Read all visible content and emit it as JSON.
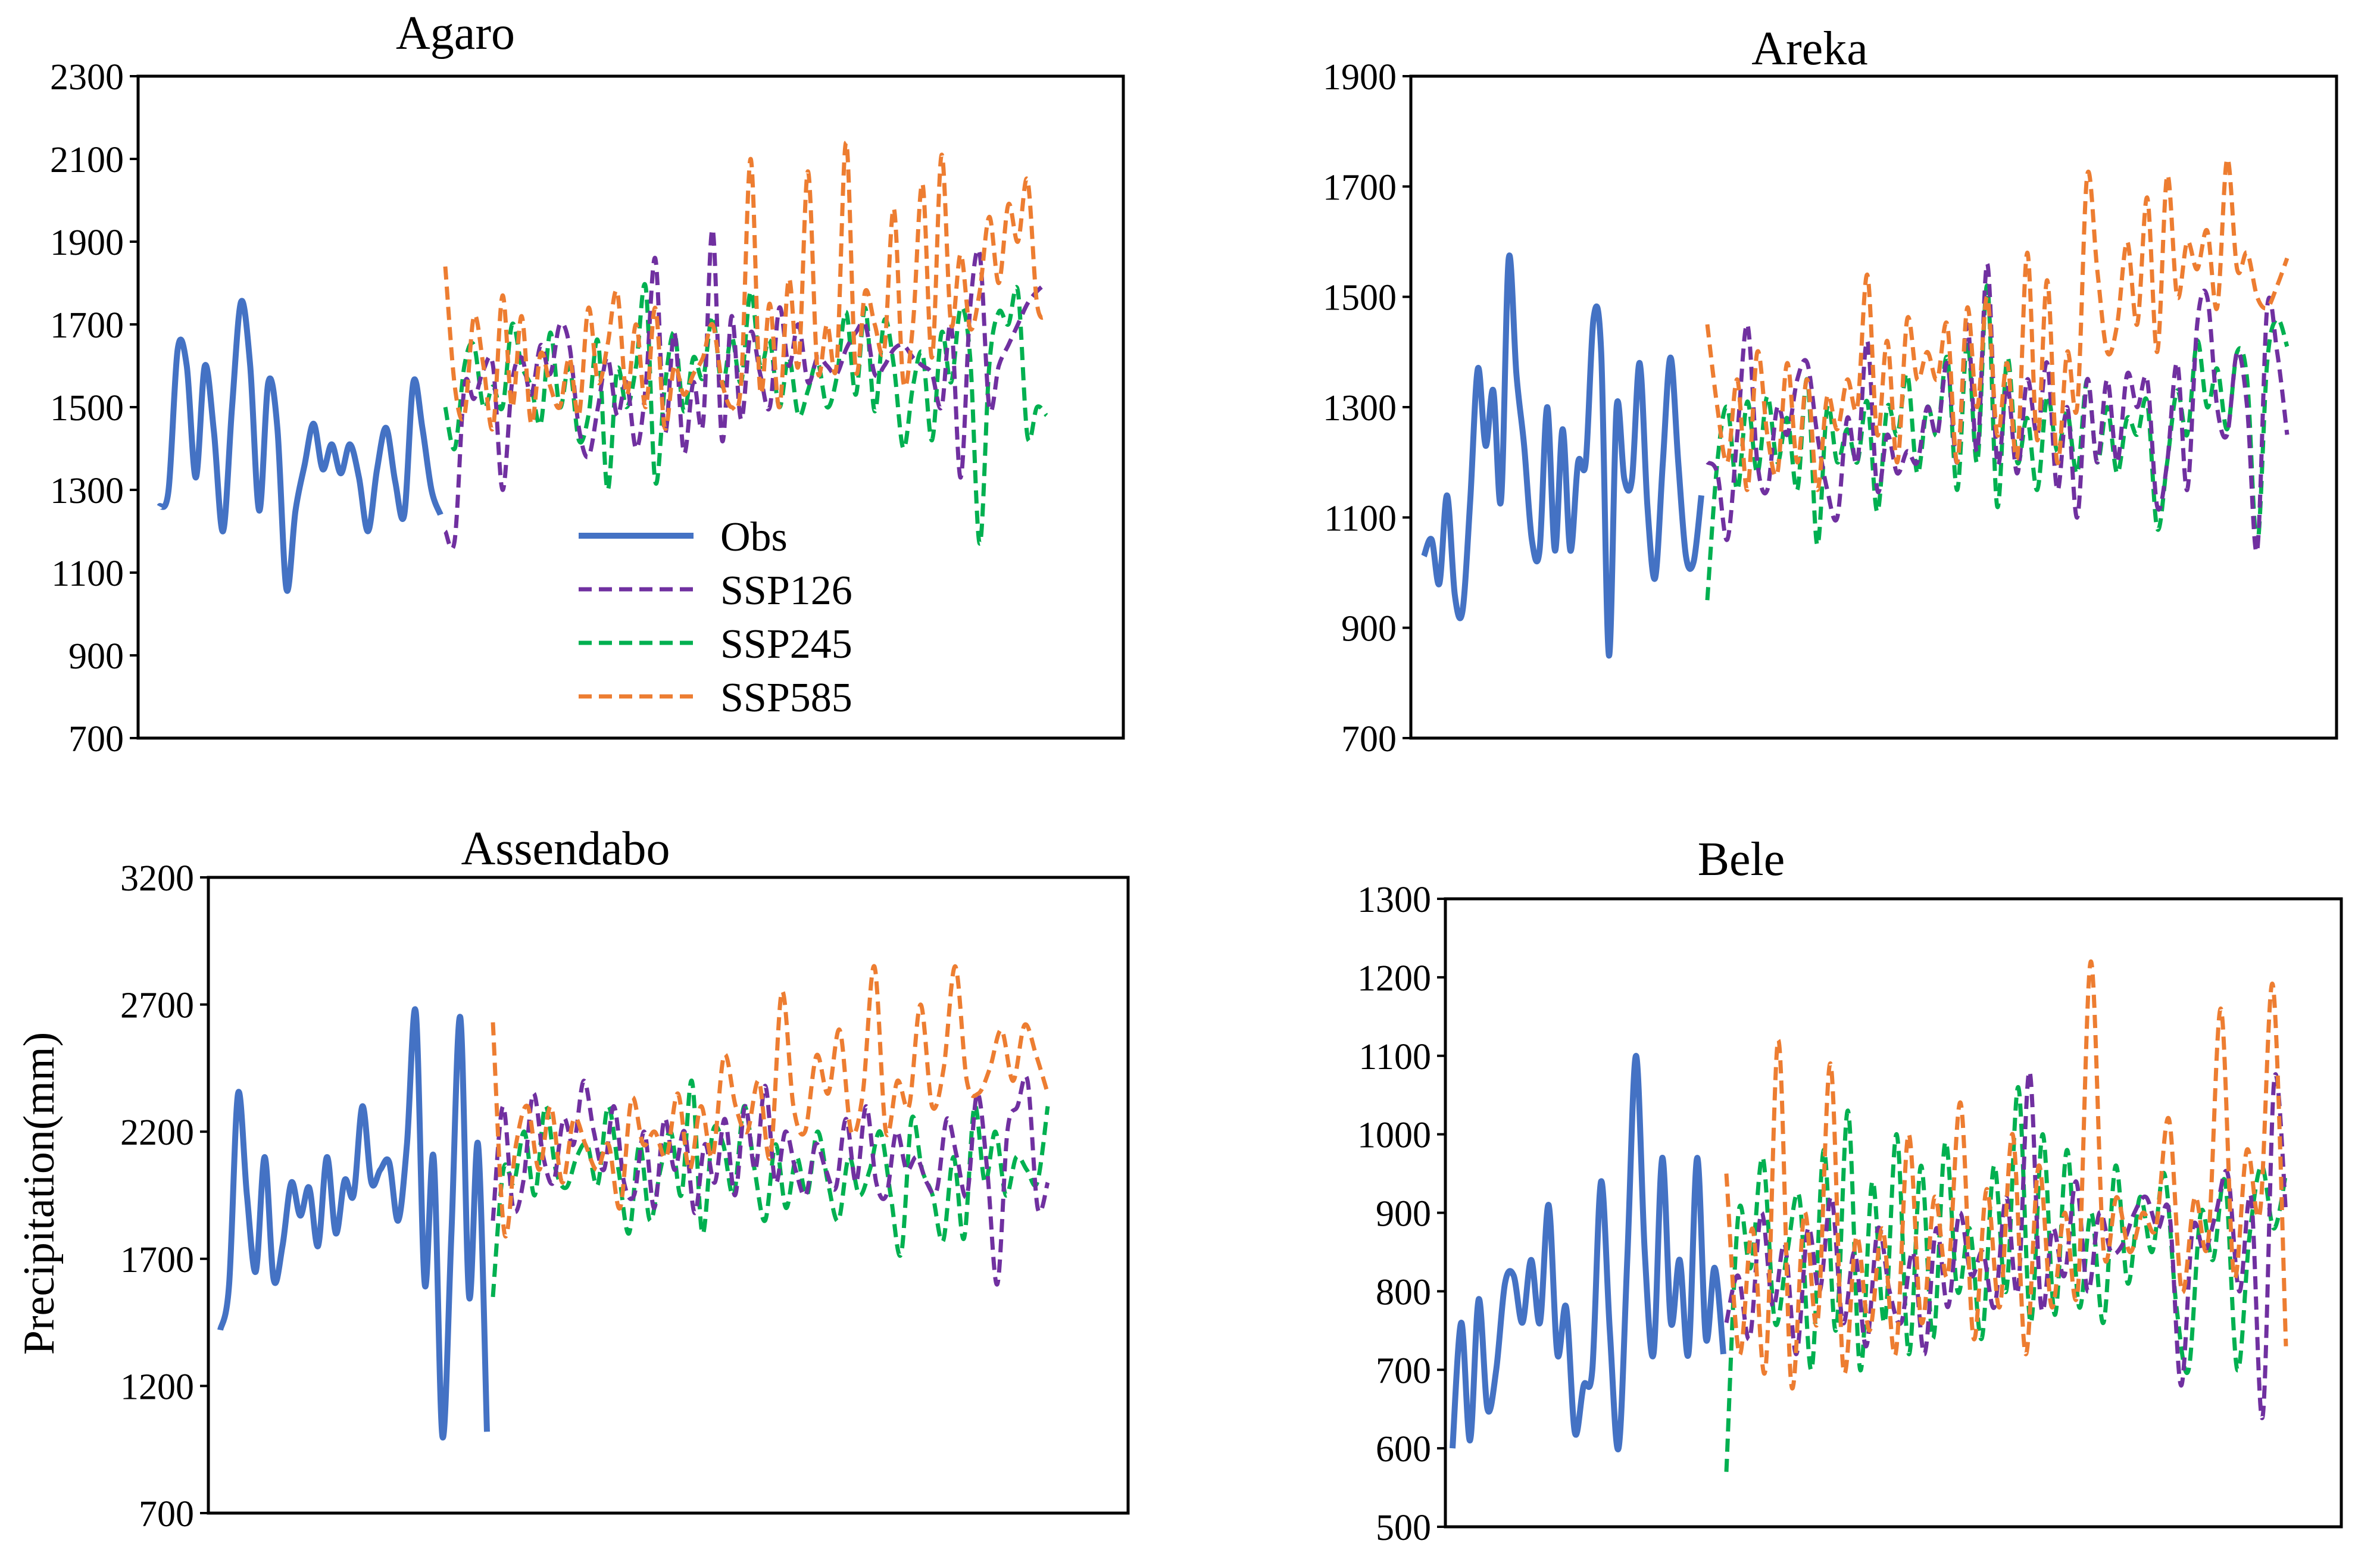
{
  "ylabel": "Precipitation(mm)",
  "colors": {
    "Obs": "#4472C4",
    "SSP126": "#7030A0",
    "SSP245": "#00B050",
    "SSP585": "#ED7D31"
  },
  "legend": {
    "items": [
      "Obs",
      "SSP126",
      "SSP245",
      "SSP585"
    ]
  },
  "chart_data": [
    {
      "type": "line",
      "title": "Agaro",
      "xlabel": "",
      "ylabel": "",
      "ylim": [
        700,
        2300
      ],
      "yticks": [
        "700",
        "900",
        "1100",
        "1300",
        "1500",
        "1700",
        "1900",
        "2100",
        "2300"
      ],
      "obs": [
        1260,
        1300,
        1640,
        1600,
        1330,
        1600,
        1440,
        1200,
        1500,
        1755,
        1600,
        1250,
        1560,
        1450,
        1060,
        1250,
        1360,
        1460,
        1350,
        1410,
        1340,
        1410,
        1330,
        1200,
        1350,
        1450,
        1320,
        1240,
        1560,
        1450,
        1300,
        1240
      ],
      "future": {
        "SSP126": [
          1200,
          1180,
          1550,
          1520,
          1590,
          1600,
          1300,
          1560,
          1620,
          1530,
          1650,
          1580,
          1700,
          1650,
          1450,
          1380,
          1500,
          1620,
          1480,
          1560,
          1400,
          1550,
          1860,
          1440,
          1680,
          1390,
          1560,
          1460,
          1930,
          1420,
          1720,
          1470,
          1680,
          1580,
          1500,
          1740,
          1600,
          1700,
          1560,
          1620,
          1600,
          1580,
          1640,
          1680,
          1700,
          1580,
          1600,
          1640,
          1650,
          1620,
          1600,
          1580,
          1500,
          1700,
          1330,
          1740,
          1870,
          1500,
          1600,
          1650,
          1700,
          1750,
          1780,
          1800
        ],
        "SSP245": [
          1500,
          1400,
          1600,
          1650,
          1500,
          1550,
          1500,
          1700,
          1600,
          1550,
          1460,
          1680,
          1500,
          1600,
          1420,
          1480,
          1660,
          1300,
          1590,
          1500,
          1600,
          1790,
          1320,
          1550,
          1680,
          1490,
          1620,
          1570,
          1720,
          1550,
          1670,
          1560,
          1780,
          1600,
          1660,
          1500,
          1620,
          1480,
          1540,
          1610,
          1500,
          1570,
          1730,
          1530,
          1740,
          1490,
          1710,
          1600,
          1400,
          1550,
          1630,
          1420,
          1680,
          1560,
          1740,
          1620,
          1170,
          1600,
          1730,
          1700,
          1780,
          1430,
          1500,
          1480
        ],
        "SSP585": [
          1840,
          1550,
          1480,
          1720,
          1600,
          1450,
          1770,
          1500,
          1720,
          1460,
          1630,
          1550,
          1500,
          1620,
          1480,
          1740,
          1560,
          1650,
          1780,
          1530,
          1700,
          1500,
          1740,
          1450,
          1600,
          1530,
          1580,
          1620,
          1700,
          1560,
          1500,
          1560,
          2100,
          1540,
          1750,
          1500,
          1810,
          1600,
          2070,
          1590,
          1700,
          1600,
          2140,
          1590,
          1780,
          1700,
          1640,
          1980,
          1560,
          1700,
          2040,
          1620,
          2110,
          1700,
          1870,
          1690,
          1780,
          1960,
          1800,
          1990,
          1900,
          2050,
          1750,
          1720
        ]
      }
    },
    {
      "type": "line",
      "title": "Areka",
      "xlabel": "",
      "ylabel": "",
      "ylim": [
        700,
        1900
      ],
      "yticks": [
        "700",
        "900",
        "1100",
        "1300",
        "1500",
        "1700",
        "1900"
      ],
      "obs": [
        1030,
        1060,
        980,
        1140,
        960,
        930,
        1130,
        1370,
        1230,
        1330,
        1130,
        1570,
        1360,
        1230,
        1060,
        1040,
        1300,
        1040,
        1260,
        1040,
        1200,
        1200,
        1460,
        1400,
        850,
        1300,
        1170,
        1170,
        1380,
        1120,
        990,
        1200,
        1390,
        1200,
        1030,
        1020,
        1140
      ],
      "future": {
        "SSP126": [
          1200,
          1180,
          1060,
          1250,
          1450,
          1200,
          1150,
          1300,
          1250,
          1350,
          1380,
          1250,
          1150,
          1100,
          1280,
          1200,
          1420,
          1150,
          1250,
          1180,
          1220,
          1200,
          1300,
          1250,
          1380,
          1200,
          1450,
          1220,
          1560,
          1200,
          1340,
          1180,
          1350,
          1250,
          1380,
          1150,
          1300,
          1100,
          1350,
          1200,
          1350,
          1200,
          1360,
          1300,
          1350,
          1120,
          1200,
          1380,
          1150,
          1450,
          1500,
          1300,
          1250,
          1400,
          1300,
          1040,
          1480,
          1400,
          1250
        ],
        "SSP245": [
          950,
          1200,
          1300,
          1150,
          1310,
          1180,
          1320,
          1200,
          1280,
          1150,
          1350,
          1050,
          1300,
          1200,
          1260,
          1200,
          1310,
          1110,
          1300,
          1250,
          1360,
          1180,
          1300,
          1250,
          1390,
          1150,
          1420,
          1200,
          1520,
          1120,
          1390,
          1200,
          1280,
          1150,
          1320,
          1220,
          1290,
          1180,
          1350,
          1200,
          1300,
          1180,
          1280,
          1250,
          1310,
          1080,
          1200,
          1330,
          1250,
          1420,
          1300,
          1370,
          1260,
          1400,
          1350,
          1050,
          1380,
          1460,
          1410
        ],
        "SSP585": [
          1450,
          1300,
          1200,
          1350,
          1150,
          1400,
          1250,
          1180,
          1380,
          1200,
          1350,
          1150,
          1320,
          1260,
          1350,
          1300,
          1540,
          1250,
          1420,
          1200,
          1460,
          1350,
          1400,
          1350,
          1450,
          1200,
          1480,
          1300,
          1500,
          1250,
          1380,
          1210,
          1580,
          1240,
          1530,
          1200,
          1400,
          1300,
          1720,
          1550,
          1400,
          1450,
          1600,
          1450,
          1680,
          1400,
          1720,
          1500,
          1600,
          1550,
          1620,
          1480,
          1750,
          1550,
          1580,
          1500,
          1480,
          1520,
          1570
        ]
      }
    },
    {
      "type": "line",
      "title": "Assendabo",
      "xlabel": "",
      "ylabel": "Precipitation(mm)",
      "ylim": [
        700,
        3200
      ],
      "yticks": [
        "700",
        "1200",
        "1700",
        "2200",
        "2700",
        "3200"
      ],
      "obs": [
        1420,
        1600,
        2350,
        1950,
        1650,
        2100,
        1620,
        1750,
        2000,
        1870,
        1980,
        1750,
        2100,
        1800,
        2010,
        1950,
        2300,
        2000,
        2050,
        2080,
        1850,
        2150,
        2670,
        1600,
        2100,
        1000,
        1800,
        2650,
        1550,
        2150,
        1020
      ],
      "future": {
        "SSP126": [
          1850,
          2300,
          1900,
          2000,
          2350,
          2100,
          2000,
          2250,
          2150,
          2400,
          2200,
          2050,
          2300,
          2000,
          1950,
          2200,
          1900,
          2250,
          2050,
          2200,
          1880,
          2150,
          2000,
          2250,
          1950,
          2300,
          2050,
          2380,
          2000,
          2200,
          2050,
          1950,
          2150,
          2050,
          1980,
          2250,
          2000,
          2300,
          2000,
          1950,
          2200,
          2050,
          2100,
          2000,
          1970,
          2250,
          2100,
          1950,
          2350,
          2050,
          1600,
          2200,
          2300,
          2400,
          1900,
          2000
        ],
        "SSP245": [
          1550,
          2050,
          2000,
          2200,
          1950,
          2300,
          2050,
          1980,
          2100,
          2150,
          1990,
          2300,
          2050,
          1800,
          2150,
          1850,
          2050,
          2200,
          1950,
          2400,
          1800,
          2200,
          2150,
          1950,
          2300,
          2050,
          1850,
          2150,
          1900,
          2100,
          1950,
          2200,
          2000,
          1850,
          2100,
          1950,
          2050,
          2200,
          1950,
          1720,
          2250,
          2050,
          1950,
          1770,
          2100,
          1780,
          2300,
          2000,
          2200,
          1950,
          2100,
          2050,
          2000,
          2300
        ],
        "SSP585": [
          2630,
          1800,
          2150,
          2300,
          2050,
          2300,
          2000,
          2250,
          2150,
          2050,
          2150,
          1900,
          2330,
          2150,
          2200,
          2100,
          2350,
          2050,
          2300,
          2100,
          2500,
          2300,
          2200,
          2400,
          2100,
          2750,
          2300,
          2200,
          2500,
          2350,
          2600,
          2200,
          2350,
          2850,
          2200,
          2400,
          2300,
          2700,
          2300,
          2450,
          2850,
          2400,
          2350,
          2450,
          2600,
          2400,
          2620,
          2500,
          2350
        ]
      }
    },
    {
      "type": "line",
      "title": "Bele",
      "xlabel": "",
      "ylabel": "",
      "ylim": [
        500,
        1300
      ],
      "yticks": [
        "500",
        "600",
        "700",
        "800",
        "900",
        "1000",
        "1100",
        "1200",
        "1300"
      ],
      "obs": [
        600,
        760,
        610,
        790,
        650,
        700,
        810,
        820,
        760,
        840,
        760,
        910,
        720,
        780,
        620,
        680,
        700,
        940,
        750,
        600,
        840,
        1100,
        850,
        720,
        970,
        760,
        840,
        720,
        970,
        740,
        830,
        720
      ],
      "future": {
        "SSP126": [
          760,
          820,
          740,
          900,
          780,
          860,
          720,
          880,
          800,
          920,
          760,
          850,
          730,
          880,
          800,
          760,
          850,
          720,
          880,
          780,
          900,
          820,
          850,
          780,
          920,
          800,
          1080,
          780,
          880,
          820,
          940,
          800,
          900,
          850,
          860,
          900,
          920,
          880,
          900,
          680,
          880,
          850,
          900,
          950,
          800,
          920,
          640,
          1070,
          900
        ],
        "SSP245": [
          570,
          900,
          830,
          970,
          760,
          850,
          920,
          700,
          980,
          750,
          1030,
          700,
          940,
          760,
          1000,
          720,
          960,
          740,
          990,
          800,
          880,
          740,
          960,
          800,
          1060,
          760,
          1000,
          770,
          980,
          780,
          900,
          760,
          960,
          810,
          920,
          850,
          950,
          780,
          700,
          900,
          840,
          940,
          700,
          870,
          960,
          880,
          950
        ],
        "SSP585": [
          950,
          720,
          880,
          700,
          1120,
          680,
          900,
          760,
          1090,
          700,
          870,
          750,
          880,
          720,
          1000,
          760,
          920,
          820,
          1040,
          740,
          930,
          780,
          1000,
          720,
          960,
          780,
          900,
          800,
          1220,
          850,
          920,
          850,
          900,
          880,
          1020,
          800,
          920,
          860,
          1160,
          820,
          980,
          900,
          1190,
          730
        ]
      }
    }
  ]
}
